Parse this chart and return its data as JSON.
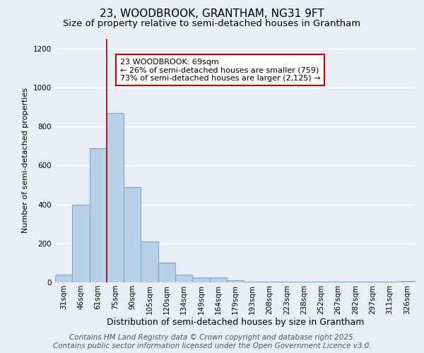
{
  "title": "23, WOODBROOK, GRANTHAM, NG31 9FT",
  "subtitle": "Size of property relative to semi-detached houses in Grantham",
  "xlabel": "Distribution of semi-detached houses by size in Grantham",
  "ylabel": "Number of semi-detached properties",
  "categories": [
    "31sqm",
    "46sqm",
    "61sqm",
    "75sqm",
    "90sqm",
    "105sqm",
    "120sqm",
    "134sqm",
    "149sqm",
    "164sqm",
    "179sqm",
    "193sqm",
    "208sqm",
    "223sqm",
    "238sqm",
    "252sqm",
    "267sqm",
    "282sqm",
    "297sqm",
    "311sqm",
    "326sqm"
  ],
  "values": [
    40,
    400,
    690,
    870,
    490,
    210,
    100,
    40,
    25,
    25,
    10,
    5,
    5,
    3,
    3,
    3,
    3,
    3,
    3,
    3,
    8
  ],
  "bar_color": "#b8d0e8",
  "bar_edge_color": "#7aaac8",
  "ylim": [
    0,
    1250
  ],
  "yticks": [
    0,
    200,
    400,
    600,
    800,
    1000,
    1200
  ],
  "red_line_x": 2.5,
  "annotation_text": "23 WOODBROOK: 69sqm\n← 26% of semi-detached houses are smaller (759)\n73% of semi-detached houses are larger (2,125) →",
  "annotation_box_color": "#ffffff",
  "annotation_box_edge_color": "#cc0000",
  "footer_line1": "Contains HM Land Registry data © Crown copyright and database right 2025.",
  "footer_line2": "Contains public sector information licensed under the Open Government Licence v3.0.",
  "background_color": "#e8eef4",
  "grid_color": "#ffffff",
  "title_fontsize": 11,
  "subtitle_fontsize": 9.5,
  "ylabel_fontsize": 8,
  "xlabel_fontsize": 9,
  "tick_fontsize": 7.5,
  "footer_fontsize": 7.5,
  "annotation_fontsize": 8
}
